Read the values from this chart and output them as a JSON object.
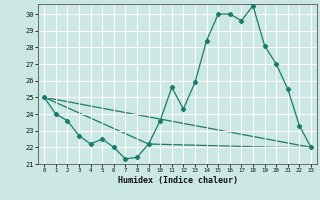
{
  "xlabel": "Humidex (Indice chaleur)",
  "xlim": [
    -0.5,
    23.5
  ],
  "ylim": [
    21,
    30.6
  ],
  "yticks": [
    21,
    22,
    23,
    24,
    25,
    26,
    27,
    28,
    29,
    30
  ],
  "xticks": [
    0,
    1,
    2,
    3,
    4,
    5,
    6,
    7,
    8,
    9,
    10,
    11,
    12,
    13,
    14,
    15,
    16,
    17,
    18,
    19,
    20,
    21,
    22,
    23
  ],
  "bg_color": "#cce8e4",
  "grid_color": "#a0ccc8",
  "line_color": "#1a7a6e",
  "lines": [
    {
      "x": [
        0,
        1,
        2,
        3,
        4,
        5,
        6,
        7,
        8,
        9,
        10,
        11,
        12,
        13,
        14,
        15,
        16,
        17,
        18,
        19,
        20,
        21,
        22,
        23
      ],
      "y": [
        25.0,
        24.0,
        23.6,
        22.7,
        22.2,
        22.5,
        22.0,
        21.3,
        21.4,
        22.2,
        23.6,
        25.6,
        24.3,
        25.9,
        28.4,
        30.0,
        30.0,
        29.6,
        30.5,
        28.1,
        27.0,
        25.5,
        23.3,
        22.0
      ]
    },
    {
      "x": [
        0,
        23
      ],
      "y": [
        25.0,
        22.0
      ]
    },
    {
      "x": [
        0,
        9,
        20,
        23
      ],
      "y": [
        25.0,
        22.2,
        22.0,
        22.0
      ]
    }
  ]
}
